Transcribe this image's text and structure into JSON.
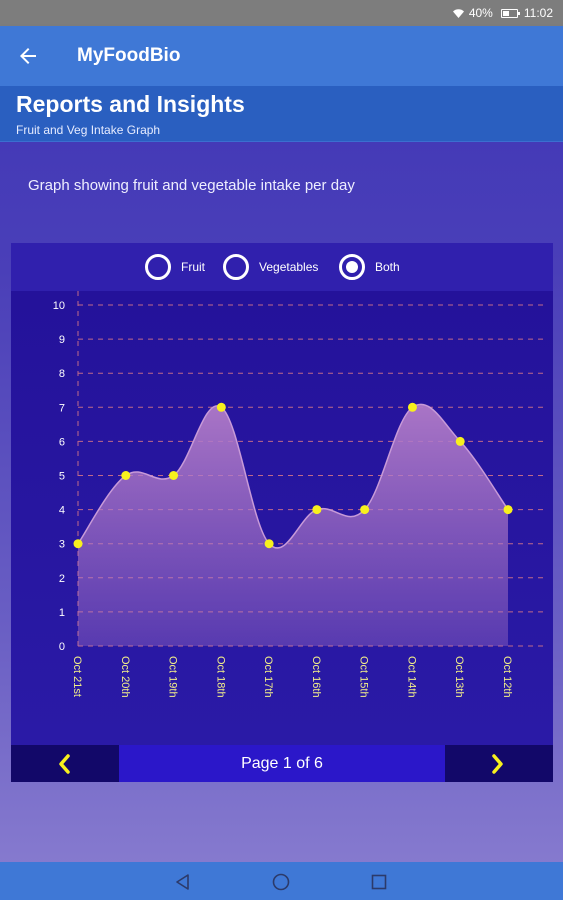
{
  "status_bar": {
    "battery": "40%",
    "time": "11:02",
    "icons": [
      "wifi-icon",
      "battery-icon"
    ]
  },
  "app_bar": {
    "title": "MyFoodBio",
    "back_icon": "arrow-left-icon"
  },
  "header": {
    "title": "Reports and Insights",
    "subtitle": "Fruit and Veg Intake Graph"
  },
  "description": "Graph showing fruit and vegetable intake per day",
  "filters": {
    "options": [
      {
        "label": "Fruit",
        "checked": false
      },
      {
        "label": "Vegetables",
        "checked": false
      },
      {
        "label": "Both",
        "checked": true
      }
    ]
  },
  "chart_data": {
    "type": "area",
    "categories": [
      "Oct 21st",
      "Oct 20th",
      "Oct 19th",
      "Oct 18th",
      "Oct 17th",
      "Oct 16th",
      "Oct 15th",
      "Oct 14th",
      "Oct 13th",
      "Oct 12th"
    ],
    "values": [
      3,
      5,
      5,
      7,
      3,
      4,
      4,
      7,
      6,
      4
    ],
    "title": "",
    "xlabel": "",
    "ylabel": "",
    "ylim": [
      0,
      10
    ],
    "yticks": [
      0,
      1,
      2,
      3,
      4,
      5,
      6,
      7,
      8,
      9,
      10
    ],
    "grid": true,
    "colors": {
      "fill": "#b07ac8",
      "line": "#c89ad8",
      "point": "#f7f01e",
      "grid": "#c06a8a",
      "x_label": "#f2ee8a"
    }
  },
  "pager": {
    "label": "Page 1 of 6",
    "prev_icon": "chevron-left-icon",
    "next_icon": "chevron-right-icon",
    "arrow_color": "#f7f01e"
  },
  "nav_bar": {
    "icons": [
      "back-triangle-icon",
      "home-circle-icon",
      "recents-square-icon"
    ]
  }
}
